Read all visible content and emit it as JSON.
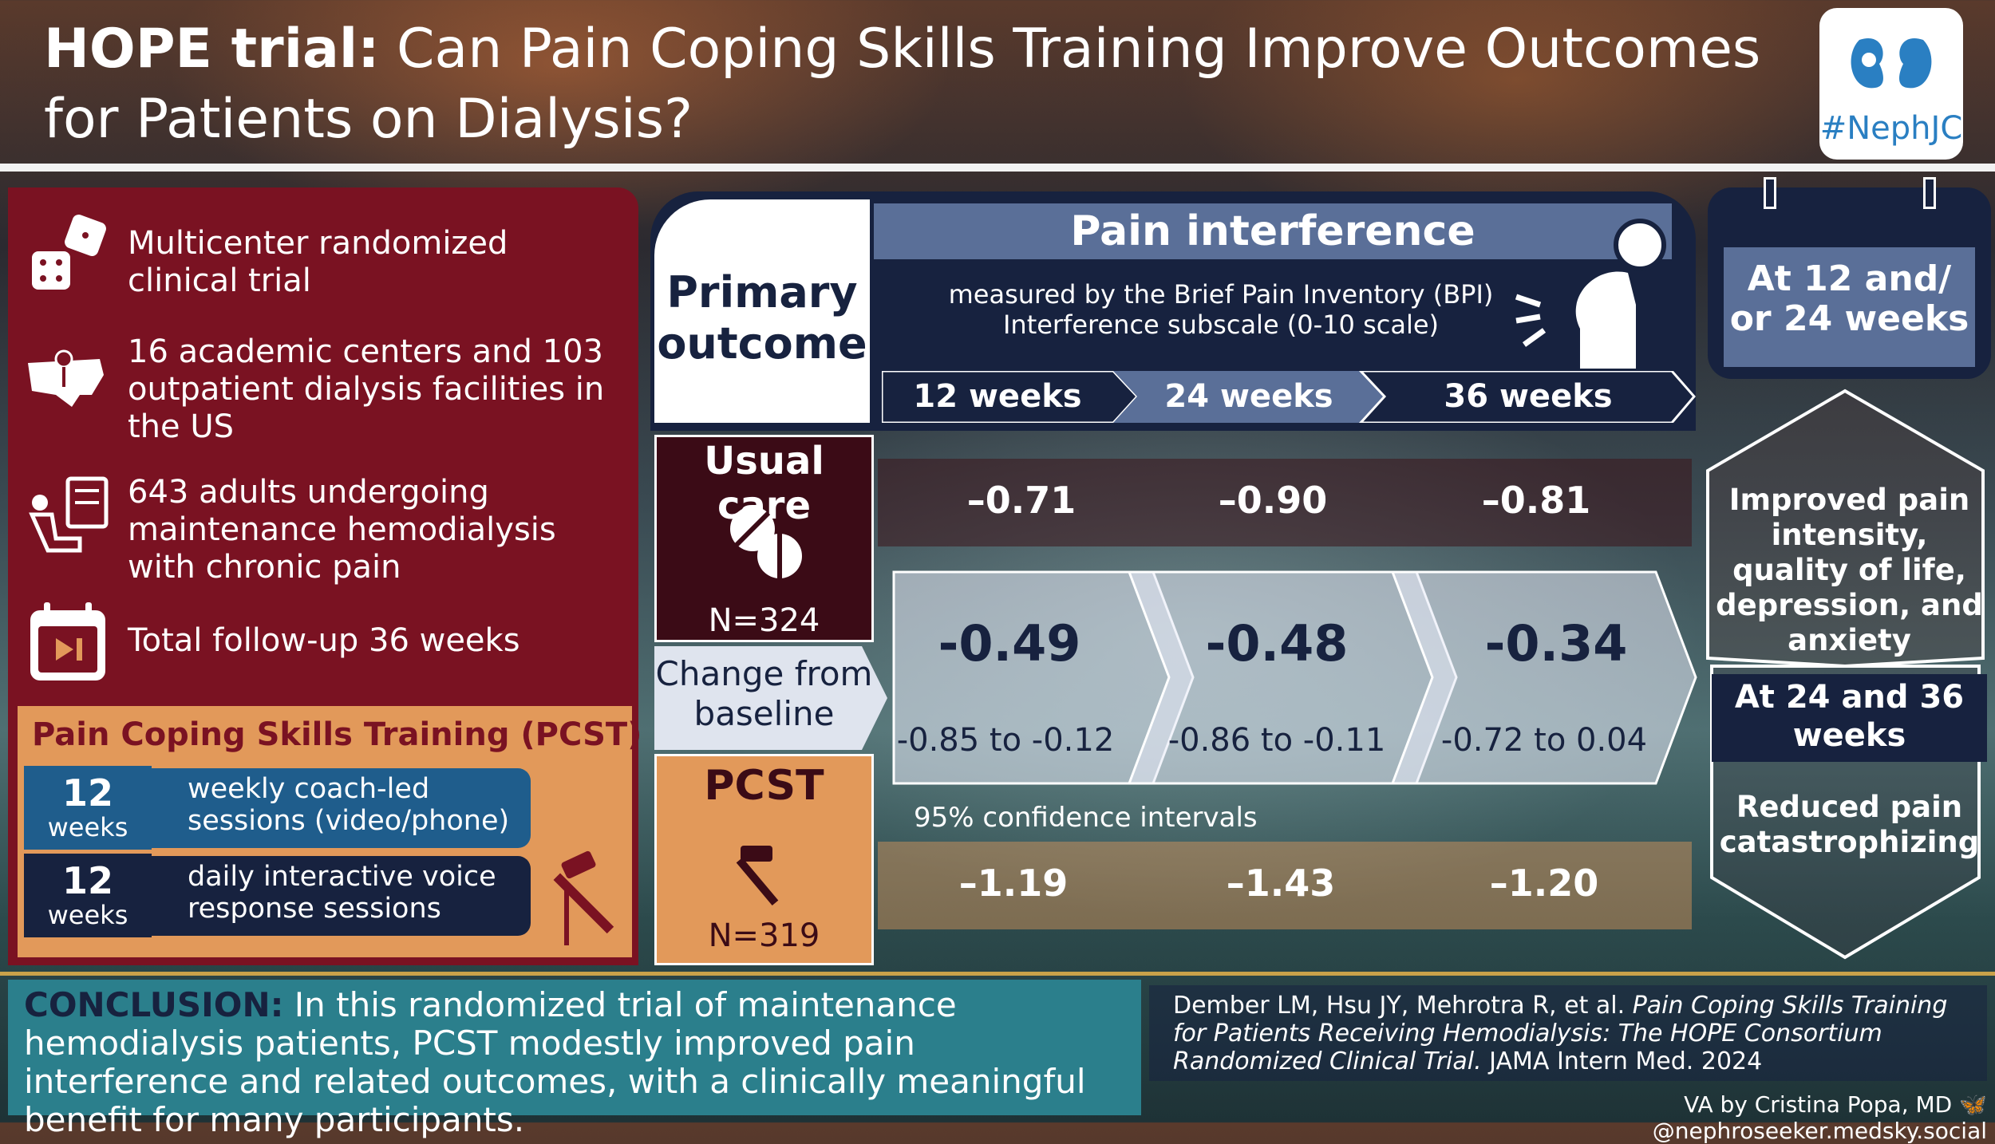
{
  "header": {
    "title_bold": "HOPE trial:",
    "title_rest": "Can Pain Coping Skills Training Improve Outcomes",
    "title_line2": "for Patients on Dialysis?",
    "logo_tag": "#NephJC"
  },
  "study": {
    "items": [
      "Multicenter randomized clinical trial",
      "16 academic centers and 103 outpatient dialysis facilities in the US",
      "643 adults undergoing maintenance hemodialysis with chronic pain",
      "Total follow-up 36 weeks"
    ],
    "icons": [
      "dice-icon",
      "us-map-pin-icon",
      "dialysis-patient-icon",
      "calendar-play-icon"
    ]
  },
  "pcst_intervention": {
    "title": "Pain Coping Skills Training (PCST)",
    "phases": [
      {
        "number": "12",
        "unit": "weeks",
        "text": "weekly coach-led sessions (video/phone)"
      },
      {
        "number": "12",
        "unit": "weeks",
        "text": "daily interactive voice response sessions"
      }
    ]
  },
  "outcome": {
    "primary_label": "Primary outcome",
    "measure_title": "Pain interference",
    "measure_sub": "measured by the Brief Pain Inventory (BPI) Interference subscale (0-10 scale)",
    "timepoints": [
      "12 weeks",
      "24 weeks",
      "36 weeks"
    ],
    "usual_care": {
      "label": "Usual care",
      "n": "N=324",
      "values": [
        "–0.71",
        "–0.90",
        "–0.81"
      ]
    },
    "change_label": "Change from baseline",
    "differences": [
      "-0.49",
      "-0.48",
      "-0.34"
    ],
    "cis": [
      "-0.85 to -0.12",
      "-0.86 to -0.11",
      "-0.72 to 0.04"
    ],
    "ci_note": "95% confidence intervals",
    "pcst": {
      "label": "PCST",
      "n": "N=319",
      "values": [
        "–1.19",
        "–1.43",
        "–1.20"
      ]
    }
  },
  "secondary": {
    "timing1": "At 12 and/ or 24 weeks",
    "result1": "Improved pain intensity, quality of life, depression, and anxiety",
    "timing2": "At 24 and 36 weeks",
    "result2": "Reduced pain catastrophizing"
  },
  "conclusion": {
    "head": "CONCLUSION:",
    "text": "In this randomized trial of maintenance hemodialysis patients, PCST modestly improved pain interference and related outcomes, with a clinically meaningful benefit for many participants."
  },
  "reference": {
    "authors": "Dember LM, Hsu JY, Mehrotra R, et al.",
    "title": "Pain Coping Skills Training for Patients Receiving Hemodialysis: The HOPE Consortium Randomized Clinical Trial.",
    "journal": "JAMA Intern Med. 2024"
  },
  "credit": {
    "author": "VA by Cristina Popa, MD",
    "handle": "@nephroseeker.medsky.social"
  },
  "colors": {
    "maroon": "#7a1222",
    "navy": "#17223f",
    "orange": "#e2995a",
    "teal": "#2b7f8c",
    "slate": "#5a6f98"
  }
}
